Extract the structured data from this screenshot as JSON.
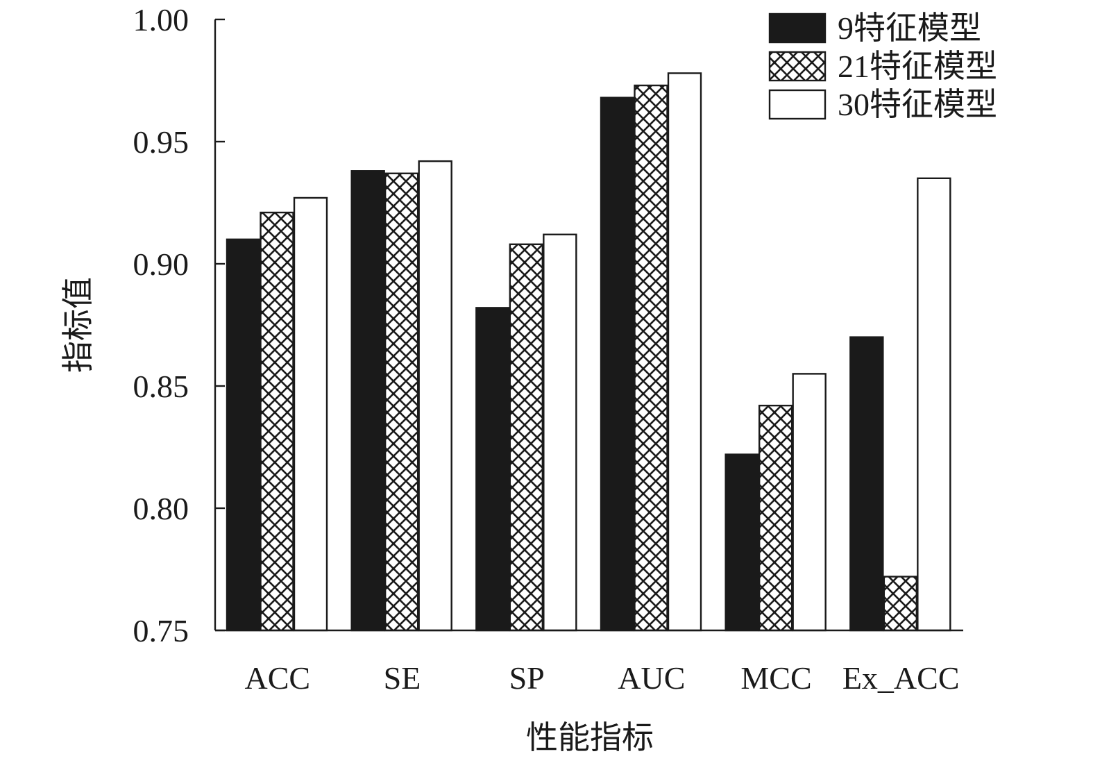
{
  "chart_data": {
    "type": "bar",
    "categories": [
      "ACC",
      "SE",
      "SP",
      "AUC",
      "MCC",
      "Ex_ACC"
    ],
    "series": [
      {
        "name": "9特征模型",
        "values": [
          0.91,
          0.938,
          0.882,
          0.968,
          0.822,
          0.87
        ],
        "fill": "solid",
        "color": "#1a1a1a"
      },
      {
        "name": "21特征模型",
        "values": [
          0.921,
          0.937,
          0.908,
          0.973,
          0.842,
          0.772
        ],
        "fill": "crosshatch",
        "color": "#1a1a1a"
      },
      {
        "name": "30特征模型",
        "values": [
          0.927,
          0.942,
          0.912,
          0.978,
          0.855,
          0.935
        ],
        "fill": "white",
        "color": "#ffffff"
      }
    ],
    "xlabel": "性能指标",
    "ylabel": "指标值",
    "ylim": [
      0.75,
      1.0
    ],
    "yticks": [
      "0.75",
      "0.80",
      "0.85",
      "0.90",
      "0.95",
      "1.00"
    ],
    "grid": false,
    "legend": "top-right"
  }
}
